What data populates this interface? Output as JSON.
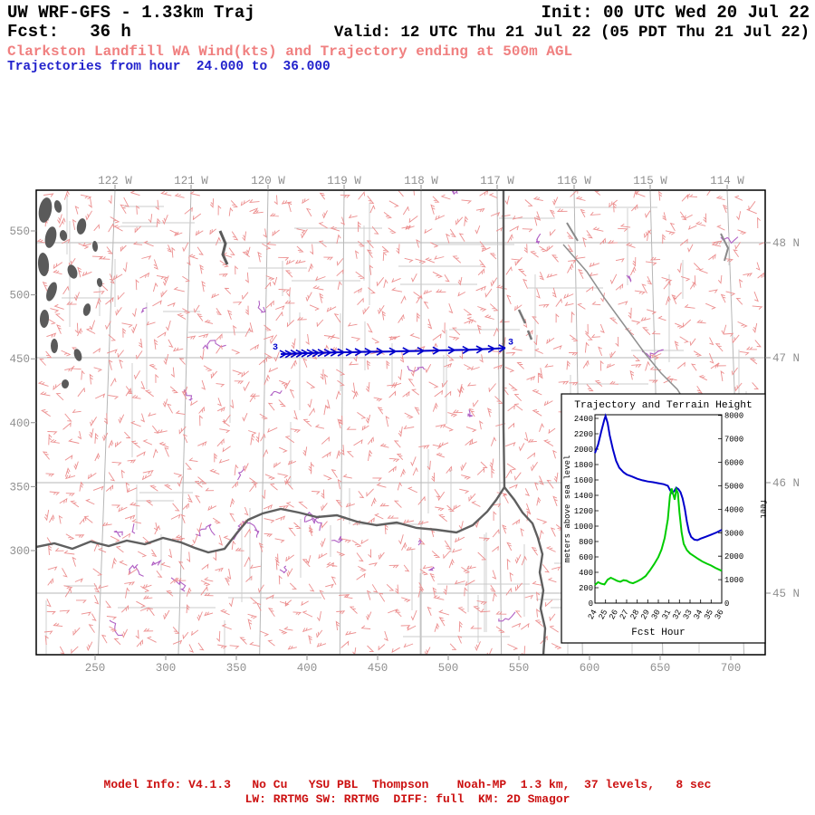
{
  "header": {
    "model": "UW WRF-GFS - 1.33km Traj",
    "init": "Init: 00 UTC Wed 20 Jul 22",
    "fcst": "Fcst:   36 h",
    "valid": "Valid: 12 UTC Thu 21 Jul 22 (05 PDT Thu 21 Jul 22)",
    "product": "Clarkston Landfill WA Wind(kts) and Trajectory ending at 500m AGL",
    "traj_range": "Trajectories from hour  24.000 to  36.000"
  },
  "footer": {
    "line1": "Model Info: V4.1.3   No Cu   YSU PBL  Thompson    Noah-MP  1.3 km,  37 levels,   8 sec",
    "line2": "LW: RRTMG SW: RRTMG  DIFF: full  KM: 2D Smagor"
  },
  "colors": {
    "title_red": "#f08080",
    "traj_blue_text": "#2222cc",
    "traj_blue": "#0000cc",
    "terrain_green": "#00cc00",
    "footer_red": "#cc1111",
    "purple": "#b060c4",
    "axis_gray": "#8f8f8f",
    "border_gray": "#5f5f5f"
  },
  "map": {
    "x_ticks": [
      "250",
      "300",
      "350",
      "400",
      "450",
      "500",
      "550",
      "600",
      "650",
      "700"
    ],
    "y_ticks": [
      "550",
      "500",
      "450",
      "400",
      "350",
      "300"
    ],
    "lon_labels": [
      "122 W",
      "121 W",
      "120 W",
      "119 W",
      "118 W",
      "117 W",
      "116 W",
      "115 W",
      "114 W"
    ],
    "lat_labels": [
      "48 N",
      "47 N",
      "46 N",
      "45 N"
    ],
    "wind_barb_color": "#ec8f8f"
  },
  "chart_data": [
    {
      "type": "line",
      "name": "trajectory-and-terrain-height-inset",
      "title": "Trajectory and Terrain Height",
      "xlabel": "Fcst Hour",
      "ylabel_left": "meters above sea level",
      "ylabel_right": "feet",
      "x_ticks": [
        24,
        25,
        26,
        27,
        28,
        29,
        30,
        31,
        32,
        33,
        34,
        35,
        36
      ],
      "yticks_left": [
        0,
        200,
        400,
        600,
        800,
        1000,
        1200,
        1400,
        1600,
        1800,
        2000,
        2200,
        2400
      ],
      "yticks_right": [
        0,
        1000,
        2000,
        3000,
        4000,
        5000,
        6000,
        7000,
        8000
      ],
      "xlim": [
        24,
        36
      ],
      "ylim_left": [
        0,
        2450
      ],
      "legend": "off",
      "series": [
        {
          "name": "trajectory height m ASL",
          "color": "#0000cc",
          "points": [
            [
              24,
              1950
            ],
            [
              24.3,
              2060
            ],
            [
              24.6,
              2230
            ],
            [
              24.9,
              2390
            ],
            [
              25.0,
              2430
            ],
            [
              25.2,
              2340
            ],
            [
              25.4,
              2180
            ],
            [
              25.7,
              2000
            ],
            [
              26,
              1850
            ],
            [
              26.3,
              1760
            ],
            [
              26.7,
              1700
            ],
            [
              27,
              1670
            ],
            [
              27.5,
              1645
            ],
            [
              28,
              1615
            ],
            [
              28.5,
              1595
            ],
            [
              29,
              1580
            ],
            [
              29.5,
              1570
            ],
            [
              30,
              1558
            ],
            [
              30.5,
              1545
            ],
            [
              30.9,
              1525
            ],
            [
              31.1,
              1470
            ],
            [
              31.3,
              1430
            ],
            [
              31.5,
              1455
            ],
            [
              31.7,
              1500
            ],
            [
              31.9,
              1480
            ],
            [
              32.1,
              1440
            ],
            [
              32.3,
              1360
            ],
            [
              32.5,
              1230
            ],
            [
              32.7,
              1060
            ],
            [
              32.9,
              930
            ],
            [
              33.1,
              860
            ],
            [
              33.4,
              825
            ],
            [
              33.7,
              818
            ],
            [
              34,
              838
            ],
            [
              34.5,
              862
            ],
            [
              35,
              890
            ],
            [
              35.5,
              918
            ],
            [
              36,
              952
            ]
          ]
        },
        {
          "name": "terrain height m ASL",
          "color": "#00cc00",
          "points": [
            [
              24,
              235
            ],
            [
              24.3,
              272
            ],
            [
              24.6,
              252
            ],
            [
              24.9,
              242
            ],
            [
              25.2,
              305
            ],
            [
              25.5,
              330
            ],
            [
              25.8,
              310
            ],
            [
              26.1,
              290
            ],
            [
              26.4,
              278
            ],
            [
              26.7,
              298
            ],
            [
              27,
              292
            ],
            [
              27.3,
              268
            ],
            [
              27.6,
              258
            ],
            [
              28,
              282
            ],
            [
              28.4,
              312
            ],
            [
              28.8,
              352
            ],
            [
              29.2,
              425
            ],
            [
              29.6,
              505
            ],
            [
              30,
              598
            ],
            [
              30.3,
              695
            ],
            [
              30.6,
              845
            ],
            [
              30.9,
              1090
            ],
            [
              31.1,
              1390
            ],
            [
              31.25,
              1490
            ],
            [
              31.4,
              1420
            ],
            [
              31.55,
              1345
            ],
            [
              31.7,
              1475
            ],
            [
              31.85,
              1430
            ],
            [
              32,
              1180
            ],
            [
              32.2,
              920
            ],
            [
              32.4,
              770
            ],
            [
              32.7,
              690
            ],
            [
              33,
              645
            ],
            [
              33.4,
              608
            ],
            [
              33.8,
              572
            ],
            [
              34.2,
              538
            ],
            [
              34.6,
              512
            ],
            [
              35,
              488
            ],
            [
              35.4,
              458
            ],
            [
              35.8,
              432
            ],
            [
              36,
              420
            ]
          ]
        }
      ]
    },
    {
      "type": "line",
      "name": "map-trajectory-path",
      "label_start": "3",
      "label_end": "3",
      "color": "#0000cc",
      "points_grid": [
        [
          381.4,
          453.7
        ],
        [
          385.3,
          453.8
        ],
        [
          389.1,
          454.0
        ],
        [
          393.0,
          454.1
        ],
        [
          396.8,
          454.3
        ],
        [
          400.6,
          454.4
        ],
        [
          404.5,
          454.5
        ],
        [
          408.3,
          454.7
        ],
        [
          412.2,
          454.7
        ],
        [
          416.7,
          454.9
        ],
        [
          421.2,
          455.0
        ],
        [
          426.3,
          455.1
        ],
        [
          432.1,
          455.2
        ],
        [
          438.5,
          455.4
        ],
        [
          445.5,
          455.5
        ],
        [
          453.8,
          455.6
        ],
        [
          462.8,
          455.8
        ],
        [
          472.4,
          456.0
        ],
        [
          482.7,
          456.2
        ],
        [
          493.6,
          456.5
        ],
        [
          504.5,
          456.8
        ],
        [
          514.7,
          457.0
        ],
        [
          524.4,
          457.5
        ],
        [
          532.7,
          457.9
        ],
        [
          540.4,
          458.4
        ]
      ]
    }
  ]
}
